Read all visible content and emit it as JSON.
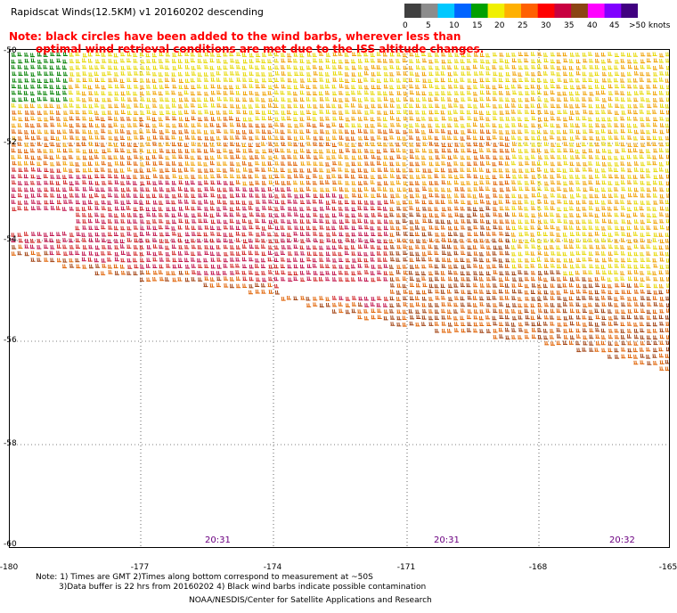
{
  "title": "Rapidscat Winds(12.5KM) v1 20160202 descending",
  "note": {
    "line1": "Note: black circles have been added to the wind barbs, wherever less than",
    "line2": "optimal wind retrieval conditions are met due to the ISS altitude changes."
  },
  "colorbar": {
    "labels": [
      "0",
      "5",
      "10",
      "15",
      "20",
      "25",
      "30",
      "35",
      "40",
      "45",
      ">50 knots"
    ],
    "colors": [
      "#404040",
      "#8c8c8c",
      "#00c8ff",
      "#0064ff",
      "#00a000",
      "#f0f000",
      "#ffb000",
      "#ff6000",
      "#ff0000",
      "#c80040",
      "#8b4513",
      "#ff00ff",
      "#8000ff",
      "#400080"
    ]
  },
  "map": {
    "latitudes": [
      "-50",
      "-52",
      "-54",
      "-56",
      "-58",
      "-60"
    ],
    "longitudes": [
      "-180",
      "-177",
      "-174",
      "-171",
      "-168",
      "-165"
    ],
    "times": [
      "20:31",
      "20:31",
      "20:32"
    ],
    "swath_colors": {
      "green": "#008000",
      "yellow": "#e6d800",
      "gold": "#f0a000",
      "orange": "#e06000",
      "red": "#d02020",
      "crimson": "#c0104a",
      "brown": "#a04010"
    }
  },
  "footer": {
    "line1": "Note: 1) Times are GMT 2)Times along bottom correspond to measurement at ~50S",
    "line2": "3)Data buffer is 22 hrs from 20160202 4) Black wind barbs indicate possible contamination",
    "line3": "NOAA/NESDIS/Center for Satellite Applications and Research"
  }
}
